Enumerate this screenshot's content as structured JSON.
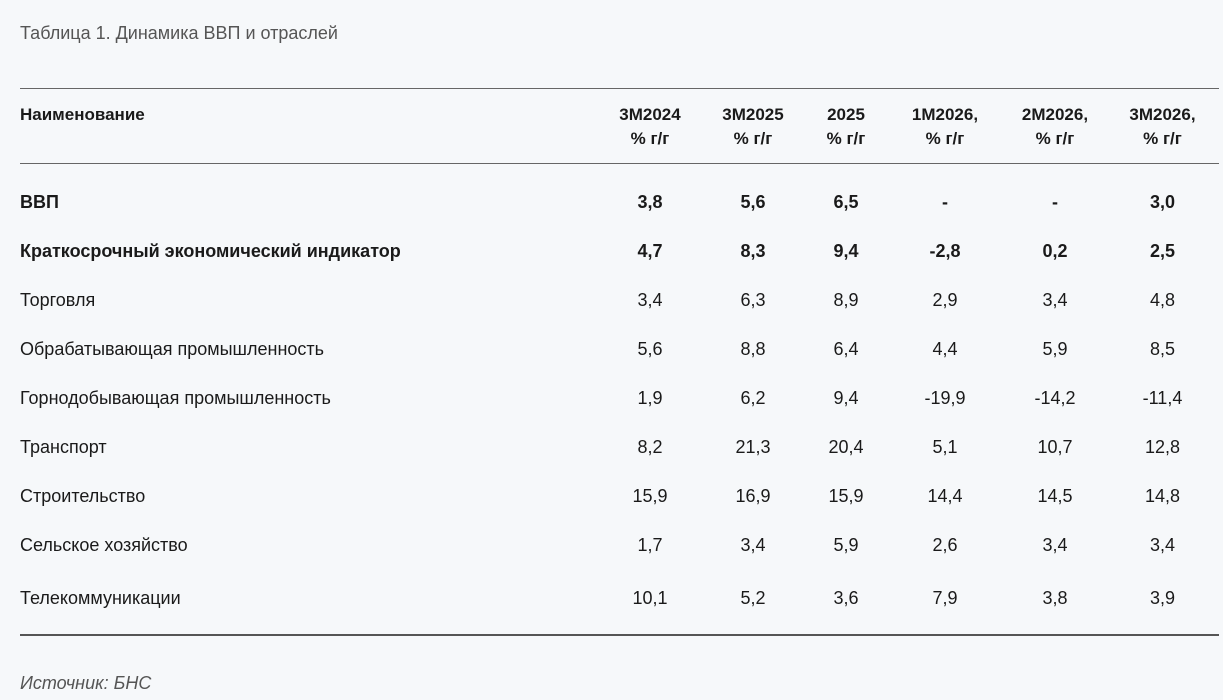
{
  "title": "Таблица 1. Динамика ВВП и отраслей",
  "table": {
    "name_header": "Наименование",
    "columns": [
      {
        "line1": "3M2024",
        "line2": "% г/г"
      },
      {
        "line1": "3M2025",
        "line2": "% г/г"
      },
      {
        "line1": "2025",
        "line2": "% г/г"
      },
      {
        "line1": "1M2026,",
        "line2": "% г/г"
      },
      {
        "line1": "2M2026,",
        "line2": "% г/г"
      },
      {
        "line1": "3M2026,",
        "line2": "% г/г"
      }
    ],
    "rows": [
      {
        "name": "ВВП",
        "bold": true,
        "values": [
          "3,8",
          "5,6",
          "6,5",
          "-",
          "-",
          "3,0"
        ]
      },
      {
        "name": "Краткосрочный экономический индикатор",
        "bold": true,
        "values": [
          "4,7",
          "8,3",
          "9,4",
          "-2,8",
          "0,2",
          "2,5"
        ]
      },
      {
        "name": "Торговля",
        "bold": false,
        "values": [
          "3,4",
          "6,3",
          "8,9",
          "2,9",
          "3,4",
          "4,8"
        ]
      },
      {
        "name": "Обрабатывающая промышленность",
        "bold": false,
        "values": [
          "5,6",
          "8,8",
          "6,4",
          "4,4",
          "5,9",
          "8,5"
        ]
      },
      {
        "name": "Горнодобывающая промышленность",
        "bold": false,
        "values": [
          "1,9",
          "6,2",
          "9,4",
          "-19,9",
          "-14,2",
          "-11,4"
        ]
      },
      {
        "name": "Транспорт",
        "bold": false,
        "values": [
          "8,2",
          "21,3",
          "20,4",
          "5,1",
          "10,7",
          "12,8"
        ]
      },
      {
        "name": "Строительство",
        "bold": false,
        "values": [
          "15,9",
          "16,9",
          "15,9",
          "14,4",
          "14,5",
          "14,8"
        ]
      },
      {
        "name": "Сельское хозяйство",
        "bold": false,
        "values": [
          "1,7",
          "3,4",
          "5,9",
          "2,6",
          "3,4",
          "3,4"
        ]
      },
      {
        "name": "Телекоммуникации",
        "bold": false,
        "values": [
          "10,1",
          "5,2",
          "3,6",
          "7,9",
          "3,8",
          "3,9"
        ]
      }
    ]
  },
  "source": "Источник: БНС"
}
